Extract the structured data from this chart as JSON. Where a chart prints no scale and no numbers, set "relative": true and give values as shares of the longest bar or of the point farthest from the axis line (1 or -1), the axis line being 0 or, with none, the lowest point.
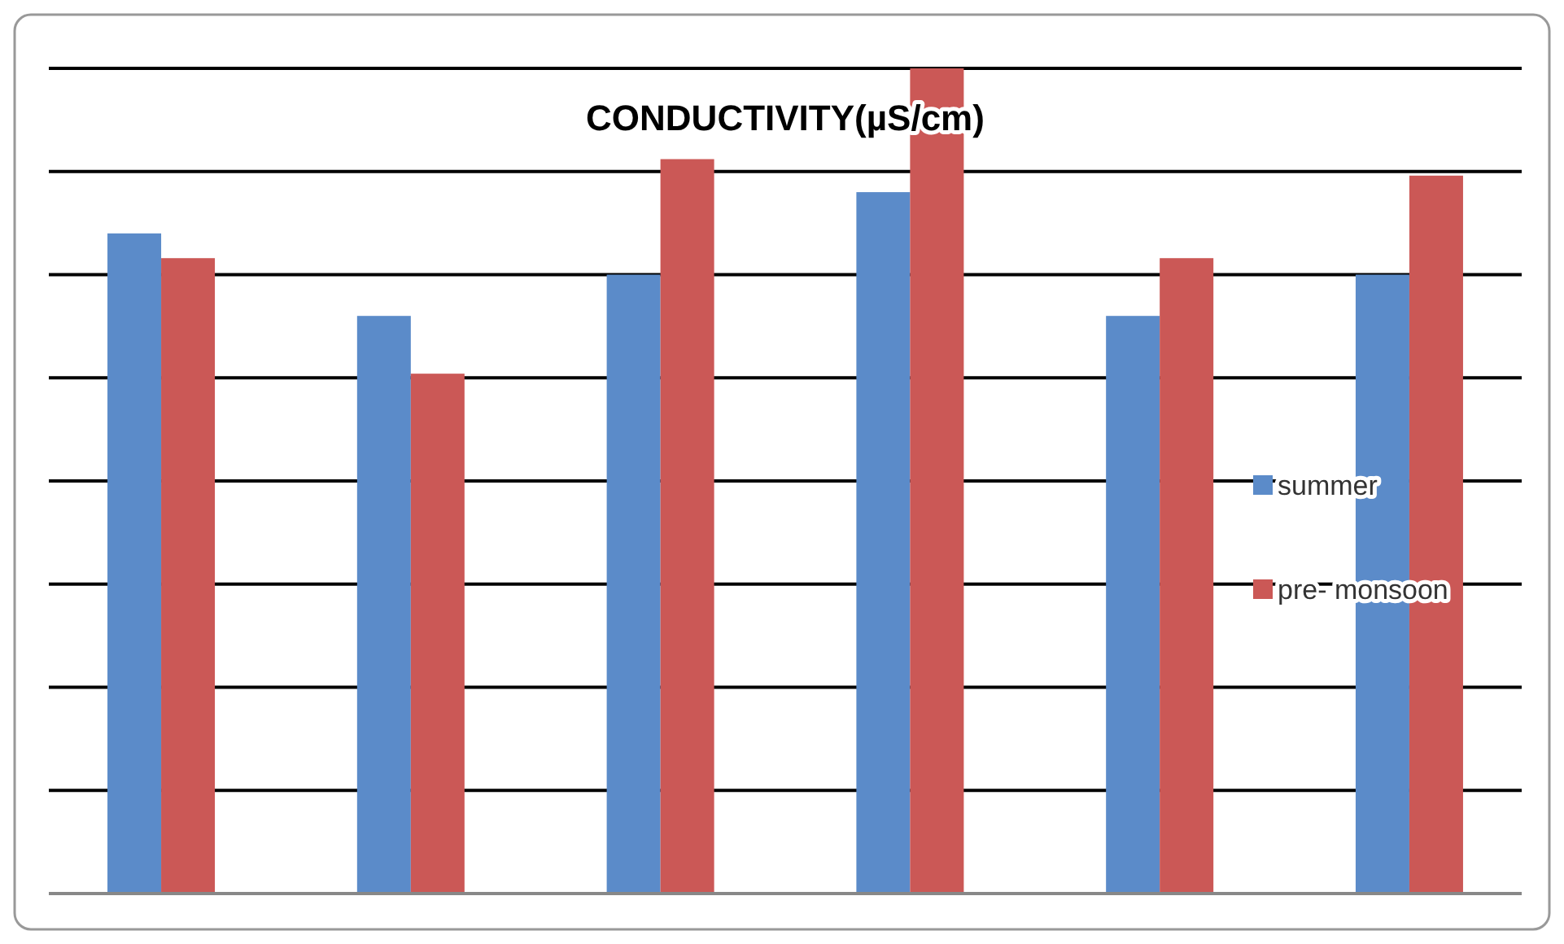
{
  "chart_data": {
    "type": "bar",
    "title": "CONDUCTIVITY(µS/cm)",
    "relative": true,
    "categories": [
      null,
      null,
      null,
      null,
      null,
      null
    ],
    "series": [
      {
        "name": "summer",
        "color": "#5b8bc9",
        "values": [
          0.8,
          0.7,
          0.75,
          0.85,
          0.7,
          0.75
        ]
      },
      {
        "name": "pre- monsoon",
        "color": "#cb5856",
        "values": [
          0.77,
          0.63,
          0.89,
          1,
          0.77,
          0.87
        ]
      }
    ],
    "grid": "y",
    "legend": "right"
  }
}
